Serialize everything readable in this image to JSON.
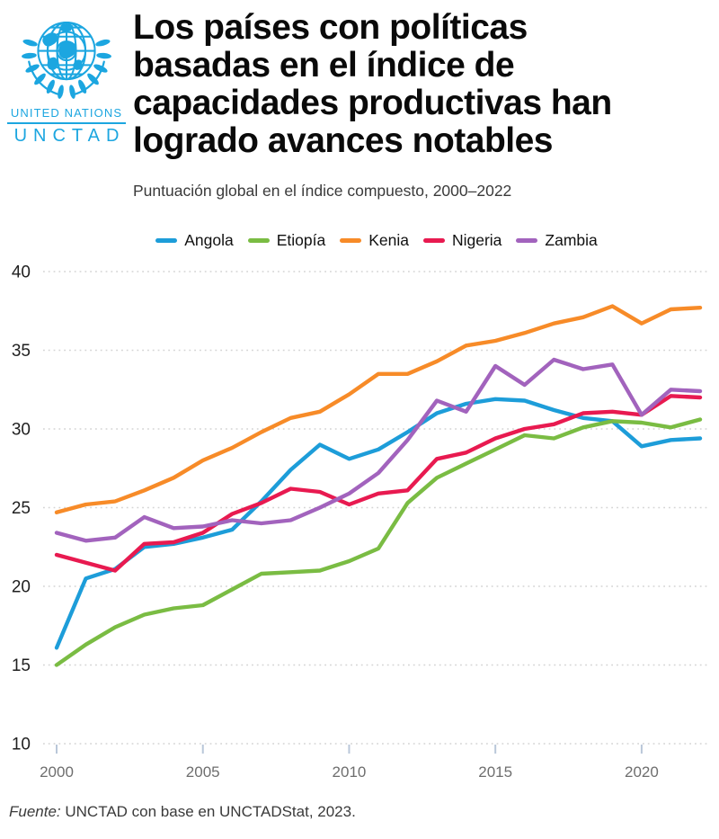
{
  "header": {
    "logo": {
      "org": "UNITED NATIONS",
      "agency": "UNCTAD"
    },
    "title": "Los países con políticas\nbasadas en el índice de\ncapacidades productivas han\nlogrado avances notables",
    "subtitle": "Puntuación global en el índice compuesto, 2000–2022"
  },
  "chart_data": {
    "type": "line",
    "title": "Los países con políticas basadas en el índice de capacidades productivas han logrado avances notables",
    "subtitle": "Puntuación global en el índice compuesto, 2000–2022",
    "x": [
      2000,
      2001,
      2002,
      2003,
      2004,
      2005,
      2006,
      2007,
      2008,
      2009,
      2010,
      2011,
      2012,
      2013,
      2014,
      2015,
      2016,
      2017,
      2018,
      2019,
      2020,
      2021,
      2022
    ],
    "series": [
      {
        "name": "Angola",
        "color": "#1d9dd9",
        "values": [
          16.1,
          20.5,
          21.1,
          22.5,
          22.7,
          23.1,
          23.6,
          25.4,
          27.4,
          29.0,
          28.1,
          28.7,
          29.8,
          31.0,
          31.6,
          31.9,
          31.8,
          31.2,
          30.7,
          30.5,
          28.9,
          29.3,
          29.4
        ]
      },
      {
        "name": "Etiopía",
        "color": "#7abc43",
        "values": [
          15.0,
          16.3,
          17.4,
          18.2,
          18.6,
          18.8,
          19.8,
          20.8,
          20.9,
          21.0,
          21.6,
          22.4,
          25.3,
          26.9,
          27.8,
          28.7,
          29.6,
          29.4,
          30.1,
          30.5,
          30.4,
          30.1,
          30.6
        ]
      },
      {
        "name": "Kenia",
        "color": "#f78b28",
        "values": [
          24.7,
          25.2,
          25.4,
          26.1,
          26.9,
          28.0,
          28.8,
          29.8,
          30.7,
          31.1,
          32.2,
          33.5,
          33.5,
          34.3,
          35.3,
          35.6,
          36.1,
          36.7,
          37.1,
          37.8,
          36.7,
          37.6,
          37.7
        ]
      },
      {
        "name": "Nigeria",
        "color": "#e81a50",
        "values": [
          22.0,
          21.5,
          21.0,
          22.7,
          22.8,
          23.4,
          24.6,
          25.3,
          26.2,
          26.0,
          25.2,
          25.9,
          26.1,
          28.1,
          28.5,
          29.4,
          30.0,
          30.3,
          31.0,
          31.1,
          30.9,
          32.1,
          32.0
        ]
      },
      {
        "name": "Zambia",
        "color": "#a263bd",
        "values": [
          23.4,
          22.9,
          23.1,
          24.4,
          23.7,
          23.8,
          24.2,
          24.0,
          24.2,
          25.0,
          25.9,
          27.2,
          29.3,
          31.8,
          31.1,
          34.0,
          32.8,
          34.4,
          33.8,
          34.1,
          30.9,
          32.5,
          32.4
        ]
      }
    ],
    "ylim": [
      10,
      40
    ],
    "yticks": [
      40,
      35,
      30,
      25,
      20,
      15,
      10
    ],
    "xticks": [
      2000,
      2005,
      2010,
      2015,
      2020
    ],
    "grid": "horizontal-dotted",
    "legend_position": "top-center",
    "xlabel": "",
    "ylabel": ""
  },
  "axis_style": {
    "y_label_color": "#1f1f1f",
    "x_label_color": "#6e6e6e",
    "grid_color": "#d4d4d4",
    "tick_color": "#b9c7d9"
  },
  "source": {
    "prefix": "Fuente:",
    "text": " UNCTAD con base en UNCTADStat, 2023."
  }
}
